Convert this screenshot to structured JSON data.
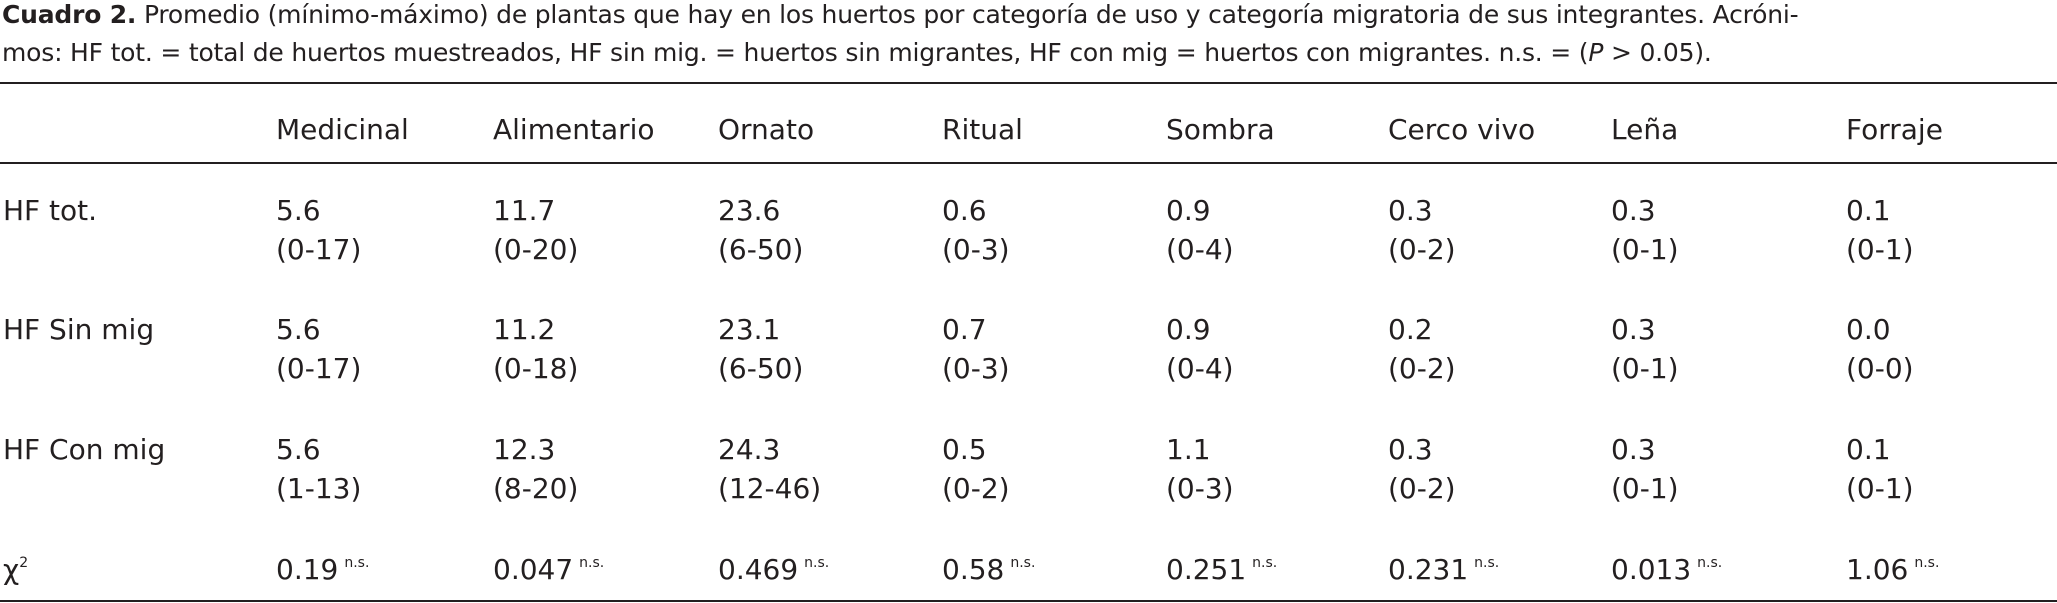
{
  "caption": {
    "label": "Cuadro 2.",
    "line1": " Promedio (mínimo-máximo) de plantas que hay en los huertos por categoría de uso y categoría migratoria de sus integrantes. Acróni-",
    "line2": "mos: HF tot. = total de huertos muestreados, HF sin mig. = huertos sin migrantes, HF con mig = huertos con migrantes.  n.s. = (",
    "italic": "P",
    "tail": " > 0.05)."
  },
  "table": {
    "columns": [
      "Medicinal",
      "Alimentario",
      "Ornato",
      "Ritual",
      "Sombra",
      "Cerco vivo",
      "Leña",
      "Forraje"
    ],
    "rows": [
      {
        "label": "HF tot.",
        "cells": [
          {
            "mean": "5.6",
            "range": "(0-17)"
          },
          {
            "mean": "11.7",
            "range": "(0-20)"
          },
          {
            "mean": "23.6",
            "range": "(6-50)"
          },
          {
            "mean": "0.6",
            "range": "(0-3)"
          },
          {
            "mean": "0.9",
            "range": "(0-4)"
          },
          {
            "mean": "0.3",
            "range": "(0-2)"
          },
          {
            "mean": "0.3",
            "range": "(0-1)"
          },
          {
            "mean": "0.1",
            "range": "(0-1)"
          }
        ]
      },
      {
        "label": "HF Sin mig",
        "cells": [
          {
            "mean": "5.6",
            "range": "(0-17)"
          },
          {
            "mean": "11.2",
            "range": "(0-18)"
          },
          {
            "mean": "23.1",
            "range": "(6-50)"
          },
          {
            "mean": "0.7",
            "range": "(0-3)"
          },
          {
            "mean": "0.9",
            "range": "(0-4)"
          },
          {
            "mean": "0.2",
            "range": "(0-2)"
          },
          {
            "mean": "0.3",
            "range": "(0-1)"
          },
          {
            "mean": "0.0",
            "range": "(0-0)"
          }
        ]
      },
      {
        "label": "HF Con mig",
        "cells": [
          {
            "mean": "5.6",
            "range": "(1-13)"
          },
          {
            "mean": "12.3",
            "range": "(8-20)"
          },
          {
            "mean": "24.3",
            "range": "(12-46)"
          },
          {
            "mean": "0.5",
            "range": "(0-2)"
          },
          {
            "mean": "1.1",
            "range": "(0-3)"
          },
          {
            "mean": "0.3",
            "range": "(0-2)"
          },
          {
            "mean": "0.3",
            "range": "(0-1)"
          },
          {
            "mean": "0.1",
            "range": "(0-1)"
          }
        ]
      }
    ],
    "chi": {
      "label": "χ",
      "sup": "2",
      "cells": [
        {
          "value": "0.19",
          "note": "n.s."
        },
        {
          "value": "0.047",
          "note": "n.s."
        },
        {
          "value": "0.469",
          "note": "n.s."
        },
        {
          "value": "0.58",
          "note": "n.s."
        },
        {
          "value": "0.251",
          "note": "n.s."
        },
        {
          "value": "0.231",
          "note": "n.s."
        },
        {
          "value": "0.013",
          "note": "n.s."
        },
        {
          "value": "1.06",
          "note": "n.s."
        }
      ]
    }
  }
}
